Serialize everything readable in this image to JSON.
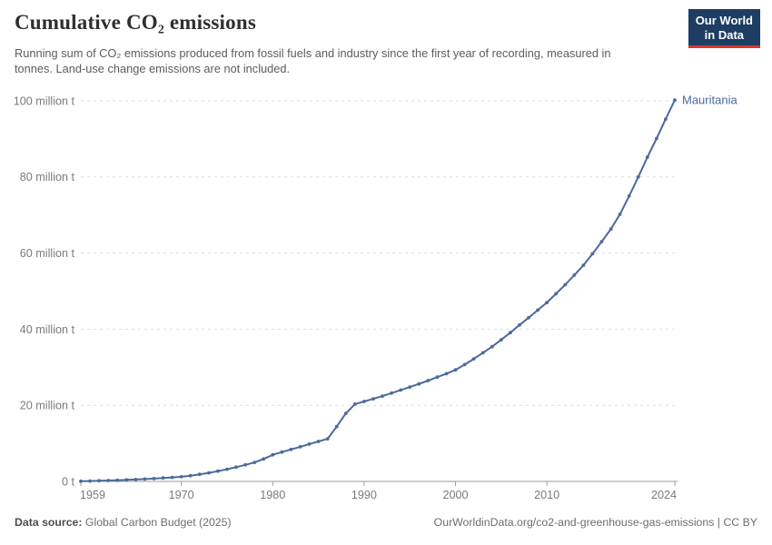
{
  "header": {
    "title": "Cumulative CO₂ emissions",
    "subtitle": "Running sum of CO₂ emissions produced from fossil fuels and industry since the first year of recording, measured in tonnes. Land-use change emissions are not included."
  },
  "logo": {
    "line1": "Our World",
    "line2": "in Data",
    "bg": "#1d3d63",
    "accent": "#dc352a"
  },
  "chart_data": {
    "type": "line",
    "title": "Cumulative CO₂ emissions",
    "entity": "Mauritania",
    "unit": "t",
    "ylabel": "",
    "xlabel": "",
    "xlim": [
      1959,
      2024
    ],
    "ylim": [
      0,
      100
    ],
    "grid": "horizontal-dashed",
    "legend_position": "line-end-label",
    "line_color": "#4c6a9c",
    "x": [
      1959,
      1960,
      1961,
      1962,
      1963,
      1964,
      1965,
      1966,
      1967,
      1968,
      1969,
      1970,
      1971,
      1972,
      1973,
      1974,
      1975,
      1976,
      1977,
      1978,
      1979,
      1980,
      1981,
      1982,
      1983,
      1984,
      1985,
      1986,
      1987,
      1988,
      1989,
      1990,
      1991,
      1992,
      1993,
      1994,
      1995,
      1996,
      1997,
      1998,
      1999,
      2000,
      2001,
      2002,
      2003,
      2004,
      2005,
      2006,
      2007,
      2008,
      2009,
      2010,
      2011,
      2012,
      2013,
      2014,
      2015,
      2016,
      2017,
      2018,
      2019,
      2020,
      2021,
      2022,
      2023,
      2024
    ],
    "series": [
      {
        "name": "Mauritania",
        "color": "#4c6a9c",
        "values": [
          0.05,
          0.1,
          0.16,
          0.23,
          0.31,
          0.4,
          0.5,
          0.62,
          0.75,
          0.9,
          1.05,
          1.22,
          1.5,
          1.85,
          2.25,
          2.7,
          3.2,
          3.75,
          4.35,
          5.0,
          5.9,
          7.0,
          7.7,
          8.4,
          9.1,
          9.8,
          10.5,
          11.2,
          14.4,
          17.9,
          20.3,
          21.0,
          21.7,
          22.4,
          23.2,
          24.0,
          24.8,
          25.6,
          26.5,
          27.4,
          28.3,
          29.3,
          30.7,
          32.2,
          33.8,
          35.4,
          37.2,
          39.1,
          41.1,
          43.0,
          45.0,
          47.0,
          49.3,
          51.7,
          54.2,
          56.8,
          59.8,
          63.0,
          66.3,
          70.2,
          75.0,
          80.0,
          85.2,
          90.1,
          95.2,
          100.2
        ]
      }
    ],
    "y_ticks": [
      {
        "value": 0,
        "label": "0 t"
      },
      {
        "value": 20,
        "label": "20 million t"
      },
      {
        "value": 40,
        "label": "40 million t"
      },
      {
        "value": 60,
        "label": "60 million t"
      },
      {
        "value": 80,
        "label": "80 million t"
      },
      {
        "value": 100,
        "label": "100 million t"
      }
    ],
    "x_ticks": [
      {
        "value": 1959,
        "label": "1959"
      },
      {
        "value": 1970,
        "label": "1970"
      },
      {
        "value": 1980,
        "label": "1980"
      },
      {
        "value": 1990,
        "label": "1990"
      },
      {
        "value": 2000,
        "label": "2000"
      },
      {
        "value": 2010,
        "label": "2010"
      },
      {
        "value": 2024,
        "label": "2024"
      }
    ]
  },
  "footer": {
    "source_label": "Data source:",
    "source_value": "Global Carbon Budget (2025)",
    "link": "OurWorldinData.org/co2-and-greenhouse-gas-emissions | CC BY"
  }
}
